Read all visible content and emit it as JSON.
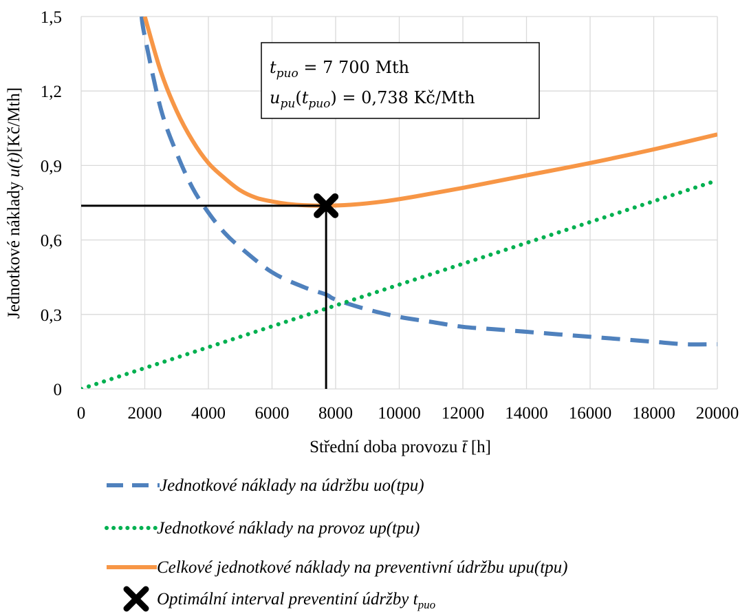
{
  "chart_data": {
    "type": "line",
    "ylabel_parts": [
      "Jednotkové náklady ",
      "u(t)",
      "[Kč/Mth]"
    ],
    "xlabel_parts": [
      "Střední doba provozu ",
      "t̄",
      " [h]"
    ],
    "xlim": [
      0,
      20000
    ],
    "ylim": [
      0,
      1.5
    ],
    "x_ticks": [
      0,
      2000,
      4000,
      6000,
      8000,
      10000,
      12000,
      14000,
      16000,
      18000,
      20000
    ],
    "x_tick_labels": [
      "0",
      "2000",
      "4000",
      "6000",
      "8000",
      "10000",
      "12000",
      "14000",
      "16000",
      "18000",
      "20000"
    ],
    "y_ticks": [
      0,
      0.3,
      0.6,
      0.9,
      1.2,
      1.5
    ],
    "y_tick_labels": [
      "0",
      "0,3",
      "0,6",
      "0,9",
      "1,2",
      "1,5"
    ],
    "grid": true,
    "legend_position": "bottom",
    "series": [
      {
        "name": "Jednotkové náklady na údržbu uo(tpu)",
        "color": "#4f81bd",
        "style": "dashed",
        "x": [
          1900,
          2000,
          2500,
          3000,
          3500,
          4000,
          4500,
          5000,
          6000,
          7000,
          7700,
          8000,
          9000,
          10000,
          11000,
          12000,
          13000,
          14000,
          15000,
          16000,
          17000,
          18000,
          19000,
          20000
        ],
        "y": [
          1.5,
          1.42,
          1.13,
          0.95,
          0.81,
          0.71,
          0.63,
          0.57,
          0.47,
          0.41,
          0.38,
          0.36,
          0.32,
          0.29,
          0.27,
          0.25,
          0.24,
          0.23,
          0.22,
          0.21,
          0.2,
          0.19,
          0.18,
          0.18
        ]
      },
      {
        "name": "Jednotkové náklady na provoz up(tpu)",
        "color": "#00b050",
        "style": "dotted",
        "x": [
          0,
          20000
        ],
        "y": [
          0,
          0.84
        ]
      },
      {
        "name": "Celkové jednotkové náklady na preventivní údržbu upu(tpu)",
        "color": "#f79646",
        "style": "solid",
        "x": [
          2000,
          2500,
          3000,
          3500,
          4000,
          4500,
          5000,
          5500,
          6000,
          6500,
          7000,
          7700,
          8500,
          9500,
          10500,
          12000,
          14000,
          16000,
          18000,
          20000
        ],
        "y": [
          1.5,
          1.28,
          1.12,
          1.0,
          0.91,
          0.85,
          0.8,
          0.77,
          0.755,
          0.745,
          0.74,
          0.738,
          0.742,
          0.755,
          0.775,
          0.81,
          0.86,
          0.91,
          0.965,
          1.025
        ]
      }
    ],
    "optimum": {
      "name": "Optimální interval preventiní údržby t",
      "name_sub": "puo",
      "x": 7700,
      "y": 0.738,
      "marker_color": "#000000"
    },
    "annotation": {
      "line1_lhs": "t",
      "line1_lhs_sub": "puo",
      "line1_rhs": " = 7 700 Mth",
      "line2_lhs": "u",
      "line2_lhs_sub": "pu",
      "line2_arg": "t",
      "line2_arg_sub": "puo",
      "line2_rhs": " = 0,738 Kč/Mth"
    }
  }
}
